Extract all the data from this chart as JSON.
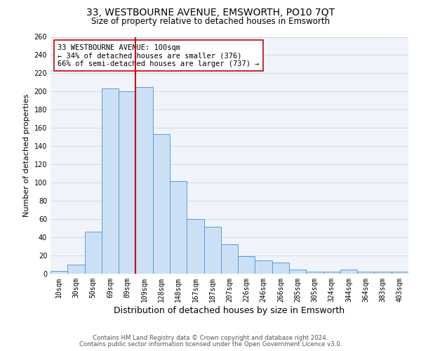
{
  "title": "33, WESTBOURNE AVENUE, EMSWORTH, PO10 7QT",
  "subtitle": "Size of property relative to detached houses in Emsworth",
  "xlabel": "Distribution of detached houses by size in Emsworth",
  "ylabel": "Number of detached properties",
  "categories": [
    "10sqm",
    "30sqm",
    "50sqm",
    "69sqm",
    "89sqm",
    "109sqm",
    "128sqm",
    "148sqm",
    "167sqm",
    "187sqm",
    "207sqm",
    "226sqm",
    "246sqm",
    "266sqm",
    "285sqm",
    "305sqm",
    "324sqm",
    "344sqm",
    "364sqm",
    "383sqm",
    "403sqm"
  ],
  "values": [
    3,
    10,
    46,
    203,
    200,
    205,
    153,
    102,
    60,
    52,
    32,
    19,
    15,
    12,
    5,
    2,
    2,
    5,
    2,
    2,
    2
  ],
  "bar_color": "#cce0f5",
  "bar_edge_color": "#5b9bd5",
  "ref_line_color": "#cc0000",
  "annotation_text": "33 WESTBOURNE AVENUE: 100sqm\n← 34% of detached houses are smaller (376)\n66% of semi-detached houses are larger (737) →",
  "annotation_box_color": "#ffffff",
  "annotation_box_edge_color": "#cc0000",
  "ylim": [
    0,
    260
  ],
  "yticks": [
    0,
    20,
    40,
    60,
    80,
    100,
    120,
    140,
    160,
    180,
    200,
    220,
    240,
    260
  ],
  "footer_line1": "Contains HM Land Registry data © Crown copyright and database right 2024.",
  "footer_line2": "Contains public sector information licensed under the Open Government Licence v3.0.",
  "bg_color": "#f0f4fa",
  "grid_color": "#c8d4e8",
  "title_fontsize": 10,
  "subtitle_fontsize": 8.5,
  "xlabel_fontsize": 9,
  "ylabel_fontsize": 8,
  "tick_fontsize": 7,
  "footer_fontsize": 6.2
}
